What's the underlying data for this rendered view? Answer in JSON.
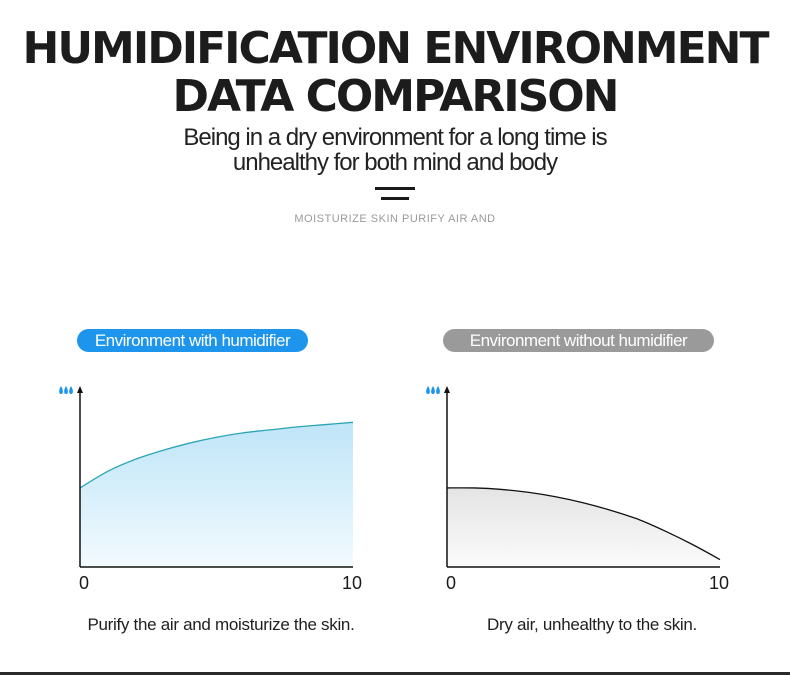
{
  "header": {
    "title_line1": "HUMIDIFICATION ENVIRONMENT",
    "title_line2": "DATA COMPARISON",
    "subtitle_line1": "Being in a dry environment for a long time is",
    "subtitle_line2": "unhealthy for both mind and body",
    "tagline": "MOISTURIZE SKIN PURIFY AIR AND"
  },
  "colors": {
    "accent_blue": "#1e95ec",
    "accent_gray": "#9a9a9a",
    "left_curve": "#2aa5b5",
    "right_curve": "#111111",
    "droplet": "#1e95ec"
  },
  "chart_data": [
    {
      "type": "area",
      "label": "Environment with humidifier",
      "caption": "Purify the air and moisturize the skin.",
      "y_icon": "water-drops-icon",
      "x": [
        0,
        1,
        2,
        3,
        4,
        5,
        6,
        7,
        8,
        9,
        10
      ],
      "values": [
        0.53,
        0.64,
        0.72,
        0.78,
        0.83,
        0.87,
        0.9,
        0.92,
        0.94,
        0.955,
        0.97
      ],
      "xlim": [
        0,
        10
      ],
      "ylim": [
        0,
        1.2
      ],
      "x_ticks": [
        "0",
        "10"
      ],
      "fill": "light-blue-gradient"
    },
    {
      "type": "area",
      "label": "Environment without humidifier",
      "caption": "Dry air, unhealthy to the skin.",
      "y_icon": "water-drops-icon",
      "x": [
        0,
        1,
        2,
        3,
        4,
        5,
        6,
        7,
        8,
        9,
        10
      ],
      "values": [
        0.53,
        0.53,
        0.52,
        0.5,
        0.47,
        0.43,
        0.38,
        0.32,
        0.24,
        0.15,
        0.05
      ],
      "xlim": [
        0,
        10
      ],
      "ylim": [
        0,
        1.2
      ],
      "x_ticks": [
        "0",
        "10"
      ],
      "fill": "light-gray-gradient"
    }
  ]
}
